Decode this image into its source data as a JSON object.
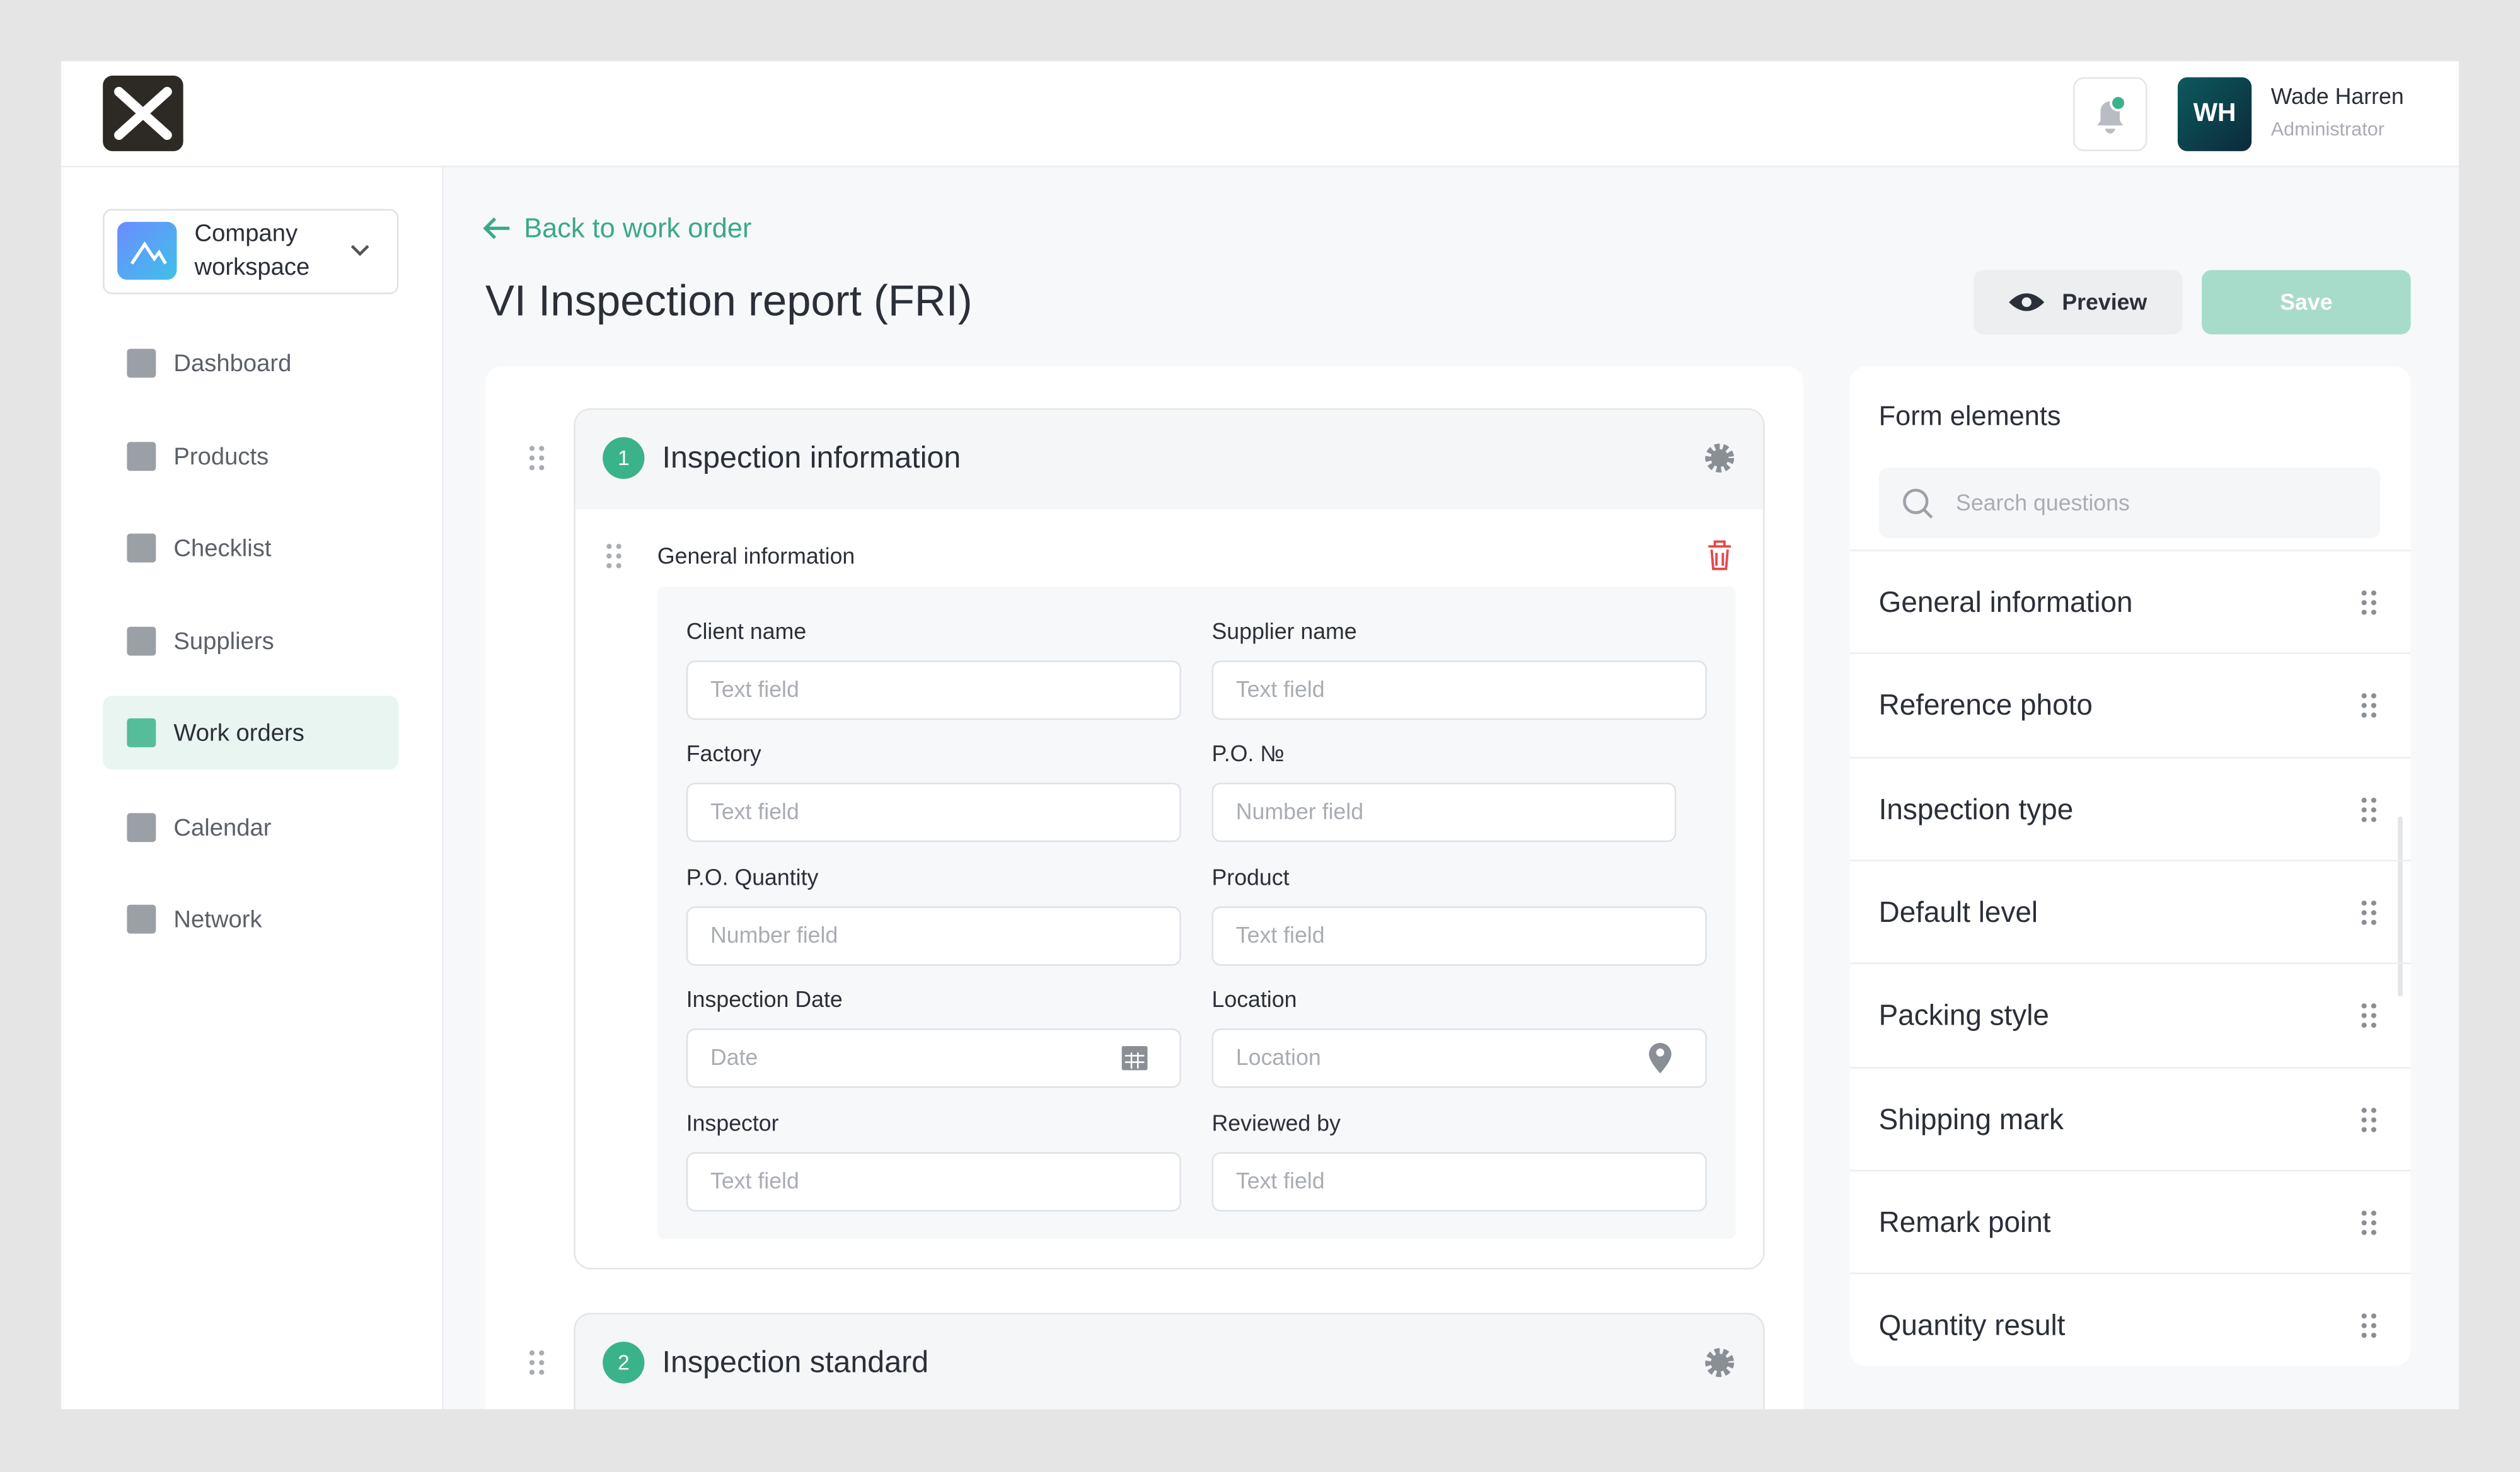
{
  "header": {
    "user_initials": "WH",
    "user_name": "Wade Harren",
    "user_role": "Administrator"
  },
  "sidebar": {
    "workspace": "Company workspace",
    "nav": [
      "Dashboard",
      "Products",
      "Checklist",
      "Suppliers",
      "Work orders",
      "Calendar",
      "Network"
    ],
    "active": "Work orders"
  },
  "main": {
    "back_link": "Back to work order",
    "title": "VI Inspection report (FRI)",
    "preview_button": "Preview",
    "save_button": "Save",
    "sections": [
      {
        "number": "1",
        "title": "Inspection information"
      },
      {
        "number": "2",
        "title": "Inspection standard"
      }
    ],
    "group_title": "General information",
    "fields": [
      {
        "label": "Client name",
        "placeholder": "Text field"
      },
      {
        "label": "Supplier name",
        "placeholder": "Text field"
      },
      {
        "label": "Factory",
        "placeholder": "Text field"
      },
      {
        "label": "P.O. №",
        "placeholder": "Number field"
      },
      {
        "label": "P.O. Quantity",
        "placeholder": "Number field"
      },
      {
        "label": "Product",
        "placeholder": "Text field"
      },
      {
        "label": "Inspection Date",
        "placeholder": "Date"
      },
      {
        "label": "Location",
        "placeholder": "Location"
      },
      {
        "label": "Inspector",
        "placeholder": "Text field"
      },
      {
        "label": "Reviewed by",
        "placeholder": "Text field"
      }
    ]
  },
  "panel": {
    "title": "Form elements",
    "search_placeholder": "Search questions",
    "items": [
      "General information",
      "Reference photo",
      "Inspection type",
      "Default level",
      "Packing style",
      "Shipping mark",
      "Remark point",
      "Quantity result"
    ]
  }
}
